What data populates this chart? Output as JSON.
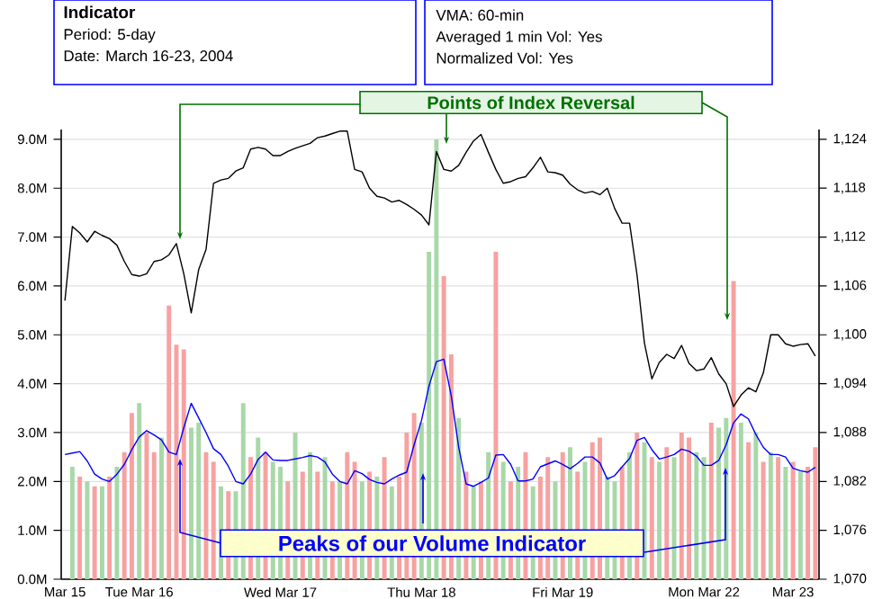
{
  "chart_data": {
    "type": "bar",
    "title": "Indicator",
    "annotations": [
      "Period: 5-day",
      "Date: March 16-23, 2004",
      "VMA: 60-min",
      "Averaged 1 min Vol: Yes",
      "Normalized Vol: Yes",
      "Points of Index Reversal",
      "Peaks of our Volume Indicator"
    ],
    "categories": [
      "Mar 15",
      null,
      null,
      null,
      null,
      null,
      null,
      null,
      null,
      null,
      "Tue Mar 16",
      null,
      null,
      null,
      null,
      null,
      null,
      null,
      null,
      null,
      null,
      null,
      null,
      null,
      null,
      null,
      null,
      null,
      null,
      "Wed Mar 17",
      null,
      null,
      null,
      null,
      null,
      null,
      null,
      null,
      null,
      null,
      null,
      null,
      null,
      null,
      null,
      null,
      null,
      null,
      "Thu Mar 18",
      null,
      null,
      null,
      null,
      null,
      null,
      null,
      null,
      null,
      null,
      null,
      null,
      null,
      null,
      null,
      null,
      null,
      null,
      "Fri Mar 19",
      null,
      null,
      null,
      null,
      null,
      null,
      null,
      null,
      null,
      null,
      null,
      null,
      null,
      null,
      null,
      null,
      null,
      null,
      "Mon Mar 22",
      null,
      null,
      null,
      null,
      null,
      null,
      null,
      null,
      null,
      null,
      null,
      "Mar 23",
      null,
      null,
      null
    ],
    "ylim": [
      0,
      9.2
    ],
    "yticks": [
      {
        "value": 0,
        "label": "0.0M"
      },
      {
        "value": 1,
        "label": "1.0M"
      },
      {
        "value": 2,
        "label": "2.0M"
      },
      {
        "value": 3,
        "label": "3.0M"
      },
      {
        "value": 4,
        "label": "4.0M"
      },
      {
        "value": 5,
        "label": "5.0M"
      },
      {
        "value": 6,
        "label": "6.0M"
      },
      {
        "value": 7,
        "label": "7.0M"
      },
      {
        "value": 8,
        "label": "8.0M"
      },
      {
        "value": 9,
        "label": "9.0M"
      }
    ],
    "y2lim": [
      1070,
      1125.2
    ],
    "y2ticks": [
      {
        "value": 1070,
        "label": "1,070"
      },
      {
        "value": 1076,
        "label": "1,076"
      },
      {
        "value": 1082,
        "label": "1,082"
      },
      {
        "value": 1088,
        "label": "1,088"
      },
      {
        "value": 1094,
        "label": "1,094"
      },
      {
        "value": 1100,
        "label": "1,100"
      },
      {
        "value": 1106,
        "label": "1,106"
      },
      {
        "value": 1112,
        "label": "1,112"
      },
      {
        "value": 1118,
        "label": "1,118"
      },
      {
        "value": 1124,
        "label": "1,124"
      }
    ],
    "grid": "y",
    "series": [
      {
        "values": [
          null,
          2.3,
          2.1,
          2.0,
          1.9,
          1.9,
          2.1,
          2.3,
          2.6,
          3.4,
          3.6,
          3.0,
          2.6,
          2.9,
          5.6,
          4.8,
          4.7,
          3.1,
          3.2,
          2.6,
          2.4,
          1.9,
          1.8,
          1.8,
          3.6,
          2.5,
          2.9,
          2.6,
          2.4,
          2.3,
          2.0,
          3.0,
          2.2,
          2.6,
          2.2,
          2.5,
          2.0,
          2.0,
          2.6,
          2.4,
          2.0,
          2.2,
          2.1,
          2.5,
          1.9,
          2.1,
          3.0,
          3.4,
          3.2,
          6.7,
          9.0,
          6.2,
          4.6,
          3.3,
          2.2,
          1.9,
          2.0,
          2.6,
          6.7,
          2.4,
          2.0,
          2.3,
          2.6,
          1.9,
          2.1,
          2.5,
          2.0,
          2.6,
          2.7,
          2.2,
          2.4,
          2.8,
          2.9,
          2.1,
          2.0,
          2.3,
          2.6,
          3.0,
          2.8,
          2.5,
          2.4,
          2.7,
          2.5,
          3.0,
          2.9,
          2.6,
          2.5,
          3.2,
          3.1,
          3.3,
          6.1,
          3.2,
          2.8,
          3.0,
          2.4,
          2.6,
          2.5,
          2.3,
          2.4,
          2.2,
          2.3,
          2.7
        ],
        "colors": [
          "#a8d8a8",
          "#a8d8a8",
          "#f7a1a1",
          "#a8d8a8",
          "#f7a1a1",
          "#a8d8a8",
          "#f7a1a1",
          "#a8d8a8",
          "#f7a1a1",
          "#f7a1a1",
          "#a8d8a8",
          "#f7a1a1",
          "#f7a1a1",
          "#a8d8a8",
          "#f7a1a1",
          "#f7a1a1",
          "#f7a1a1",
          "#a8d8a8",
          "#a8d8a8",
          "#f7a1a1",
          "#f7a1a1",
          "#a8d8a8",
          "#f7a1a1",
          "#a8d8a8",
          "#a8d8a8",
          "#f7a1a1",
          "#a8d8a8",
          "#f7a1a1",
          "#a8d8a8",
          "#a8d8a8",
          "#f7a1a1",
          "#a8d8a8",
          "#f7a1a1",
          "#a8d8a8",
          "#f7a1a1",
          "#a8d8a8",
          "#f7a1a1",
          "#a8d8a8",
          "#f7a1a1",
          "#f7a1a1",
          "#a8d8a8",
          "#f7a1a1",
          "#a8d8a8",
          "#f7a1a1",
          "#a8d8a8",
          "#f7a1a1",
          "#f7a1a1",
          "#f7a1a1",
          "#a8d8a8",
          "#a8d8a8",
          "#a8d8a8",
          "#f7a1a1",
          "#f7a1a1",
          "#a8d8a8",
          "#f7a1a1",
          "#a8d8a8",
          "#f7a1a1",
          "#a8d8a8",
          "#f7a1a1",
          "#a8d8a8",
          "#f7a1a1",
          "#a8d8a8",
          "#f7a1a1",
          "#a8d8a8",
          "#f7a1a1",
          "#f7a1a1",
          "#a8d8a8",
          "#f7a1a1",
          "#a8d8a8",
          "#f7a1a1",
          "#a8d8a8",
          "#f7a1a1",
          "#f7a1a1",
          "#a8d8a8",
          "#a8d8a8",
          "#f7a1a1",
          "#a8d8a8",
          "#f7a1a1",
          "#a8d8a8",
          "#f7a1a1",
          "#a8d8a8",
          "#f7a1a1",
          "#a8d8a8",
          "#f7a1a1",
          "#f7a1a1",
          "#a8d8a8",
          "#a8d8a8",
          "#f7a1a1",
          "#a8d8a8",
          "#a8d8a8",
          "#f7a1a1",
          "#a8d8a8",
          "#f7a1a1",
          "#a8d8a8",
          "#f7a1a1",
          "#a8d8a8",
          "#f7a1a1",
          "#a8d8a8",
          "#f7a1a1",
          "#a8d8a8",
          "#f7a1a1",
          "#f7a1a1"
        ]
      },
      {
        "type": "line",
        "color": "#0000ff",
        "values": [
          2.55,
          2.58,
          2.61,
          2.42,
          2.15,
          2.05,
          2.0,
          2.15,
          2.35,
          2.65,
          2.91,
          3.04,
          2.95,
          2.85,
          2.6,
          2.55,
          3.1,
          3.6,
          3.3,
          3.0,
          2.67,
          2.55,
          2.31,
          2.0,
          1.95,
          2.15,
          2.45,
          2.6,
          2.44,
          2.43,
          2.43,
          2.46,
          2.49,
          2.53,
          2.5,
          2.4,
          2.15,
          2.0,
          1.95,
          2.22,
          2.16,
          2.04,
          1.98,
          1.95,
          2.05,
          2.13,
          2.19,
          2.75,
          3.25,
          3.95,
          4.45,
          4.5,
          3.75,
          2.7,
          1.95,
          1.9,
          1.98,
          2.07,
          2.54,
          2.55,
          2.35,
          2.01,
          2.01,
          2.05,
          2.3,
          2.36,
          2.42,
          2.35,
          2.26,
          2.37,
          2.5,
          2.5,
          2.38,
          2.05,
          2.12,
          2.3,
          2.47,
          2.84,
          2.9,
          2.65,
          2.46,
          2.5,
          2.55,
          2.66,
          2.62,
          2.52,
          2.33,
          2.33,
          2.43,
          2.75,
          3.2,
          3.38,
          3.28,
          2.96,
          2.7,
          2.55,
          2.55,
          2.5,
          2.27,
          2.22,
          2.19,
          2.29
        ]
      },
      {
        "type": "line",
        "color": "#000000",
        "axis": "y2",
        "values": [
          1104.2,
          1113.3,
          1112.5,
          1111.4,
          1112.7,
          1112.2,
          1111.8,
          1111.0,
          1109.0,
          1107.4,
          1107.2,
          1107.5,
          1109.0,
          1109.2,
          1109.8,
          1111.2,
          1107.5,
          1102.7,
          1108.0,
          1110.5,
          1118.6,
          1119.0,
          1119.2,
          1120.1,
          1120.5,
          1122.8,
          1123.0,
          1122.8,
          1122.0,
          1122.0,
          1122.5,
          1122.9,
          1123.2,
          1123.5,
          1124.2,
          1124.4,
          1124.7,
          1125.0,
          1125.0,
          1120.3,
          1120.0,
          1118.0,
          1117.0,
          1116.8,
          1116.3,
          1116.5,
          1116.0,
          1115.4,
          1114.7,
          1113.5,
          1122.5,
          1120.3,
          1120.1,
          1120.8,
          1122.4,
          1123.8,
          1124.6,
          1122.4,
          1120.3,
          1118.6,
          1118.8,
          1119.2,
          1119.4,
          1120.5,
          1121.8,
          1120.0,
          1119.9,
          1119.6,
          1118.5,
          1117.8,
          1117.4,
          1117.6,
          1117.2,
          1118.0,
          1115.5,
          1113.7,
          1113.7,
          1107.4,
          1099.0,
          1094.6,
          1096.6,
          1097.6,
          1097.1,
          1098.7,
          1096.5,
          1095.6,
          1095.8,
          1097.2,
          1095.2,
          1094.0,
          1091.2,
          1092.6,
          1093.5,
          1093.0,
          1095.3,
          1100.0,
          1100.0,
          1098.9,
          1098.6,
          1098.8,
          1098.9,
          1097.4
        ]
      }
    ]
  }
}
